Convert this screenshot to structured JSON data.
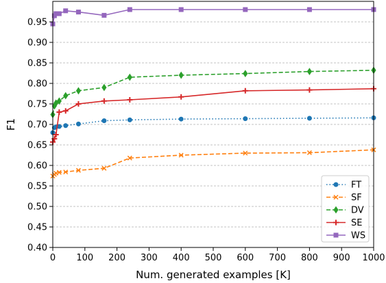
{
  "chart_data": {
    "type": "line",
    "title": "",
    "xlabel": "Num. generated examples [K]",
    "ylabel": "F1",
    "xlim": [
      0,
      1000
    ],
    "ylim": [
      0.4,
      1.0
    ],
    "x_ticks": [
      "0",
      "100",
      "200",
      "300",
      "400",
      "500",
      "600",
      "700",
      "800",
      "900",
      "1000"
    ],
    "y_ticks": [
      "0.40",
      "0.45",
      "0.50",
      "0.55",
      "0.60",
      "0.65",
      "0.70",
      "0.75",
      "0.80",
      "0.85",
      "0.90",
      "0.95"
    ],
    "grid": "horizontal-dashed",
    "legend_position": "bottom-right",
    "x": [
      0,
      5,
      10,
      20,
      40,
      80,
      160,
      240,
      400,
      600,
      800,
      1000
    ],
    "series": [
      {
        "name": "FT",
        "color": "#1f77b4",
        "linestyle": "dotted",
        "marker": "circle",
        "values": [
          0.68,
          0.692,
          0.694,
          0.695,
          0.697,
          0.701,
          0.709,
          0.711,
          0.713,
          0.714,
          0.715,
          0.716
        ]
      },
      {
        "name": "SF",
        "color": "#ff7f0e",
        "linestyle": "dashed",
        "marker": "x",
        "values": [
          0.574,
          0.578,
          0.581,
          0.583,
          0.584,
          0.588,
          0.593,
          0.618,
          0.625,
          0.63,
          0.631,
          0.638
        ]
      },
      {
        "name": "DV",
        "color": "#2ca02c",
        "linestyle": "dashed",
        "marker": "diamond",
        "values": [
          0.724,
          0.745,
          0.752,
          0.757,
          0.77,
          0.782,
          0.79,
          0.815,
          0.82,
          0.824,
          0.829,
          0.832
        ]
      },
      {
        "name": "SE",
        "color": "#d62728",
        "linestyle": "solid",
        "marker": "plus",
        "values": [
          0.657,
          0.665,
          0.675,
          0.73,
          0.733,
          0.75,
          0.757,
          0.76,
          0.767,
          0.782,
          0.784,
          0.787
        ]
      },
      {
        "name": "WS",
        "color": "#9467bd",
        "linestyle": "solid",
        "marker": "square",
        "values": [
          0.945,
          0.965,
          0.97,
          0.97,
          0.977,
          0.974,
          0.966,
          0.98,
          0.98,
          0.98,
          0.98,
          0.98
        ]
      }
    ]
  }
}
